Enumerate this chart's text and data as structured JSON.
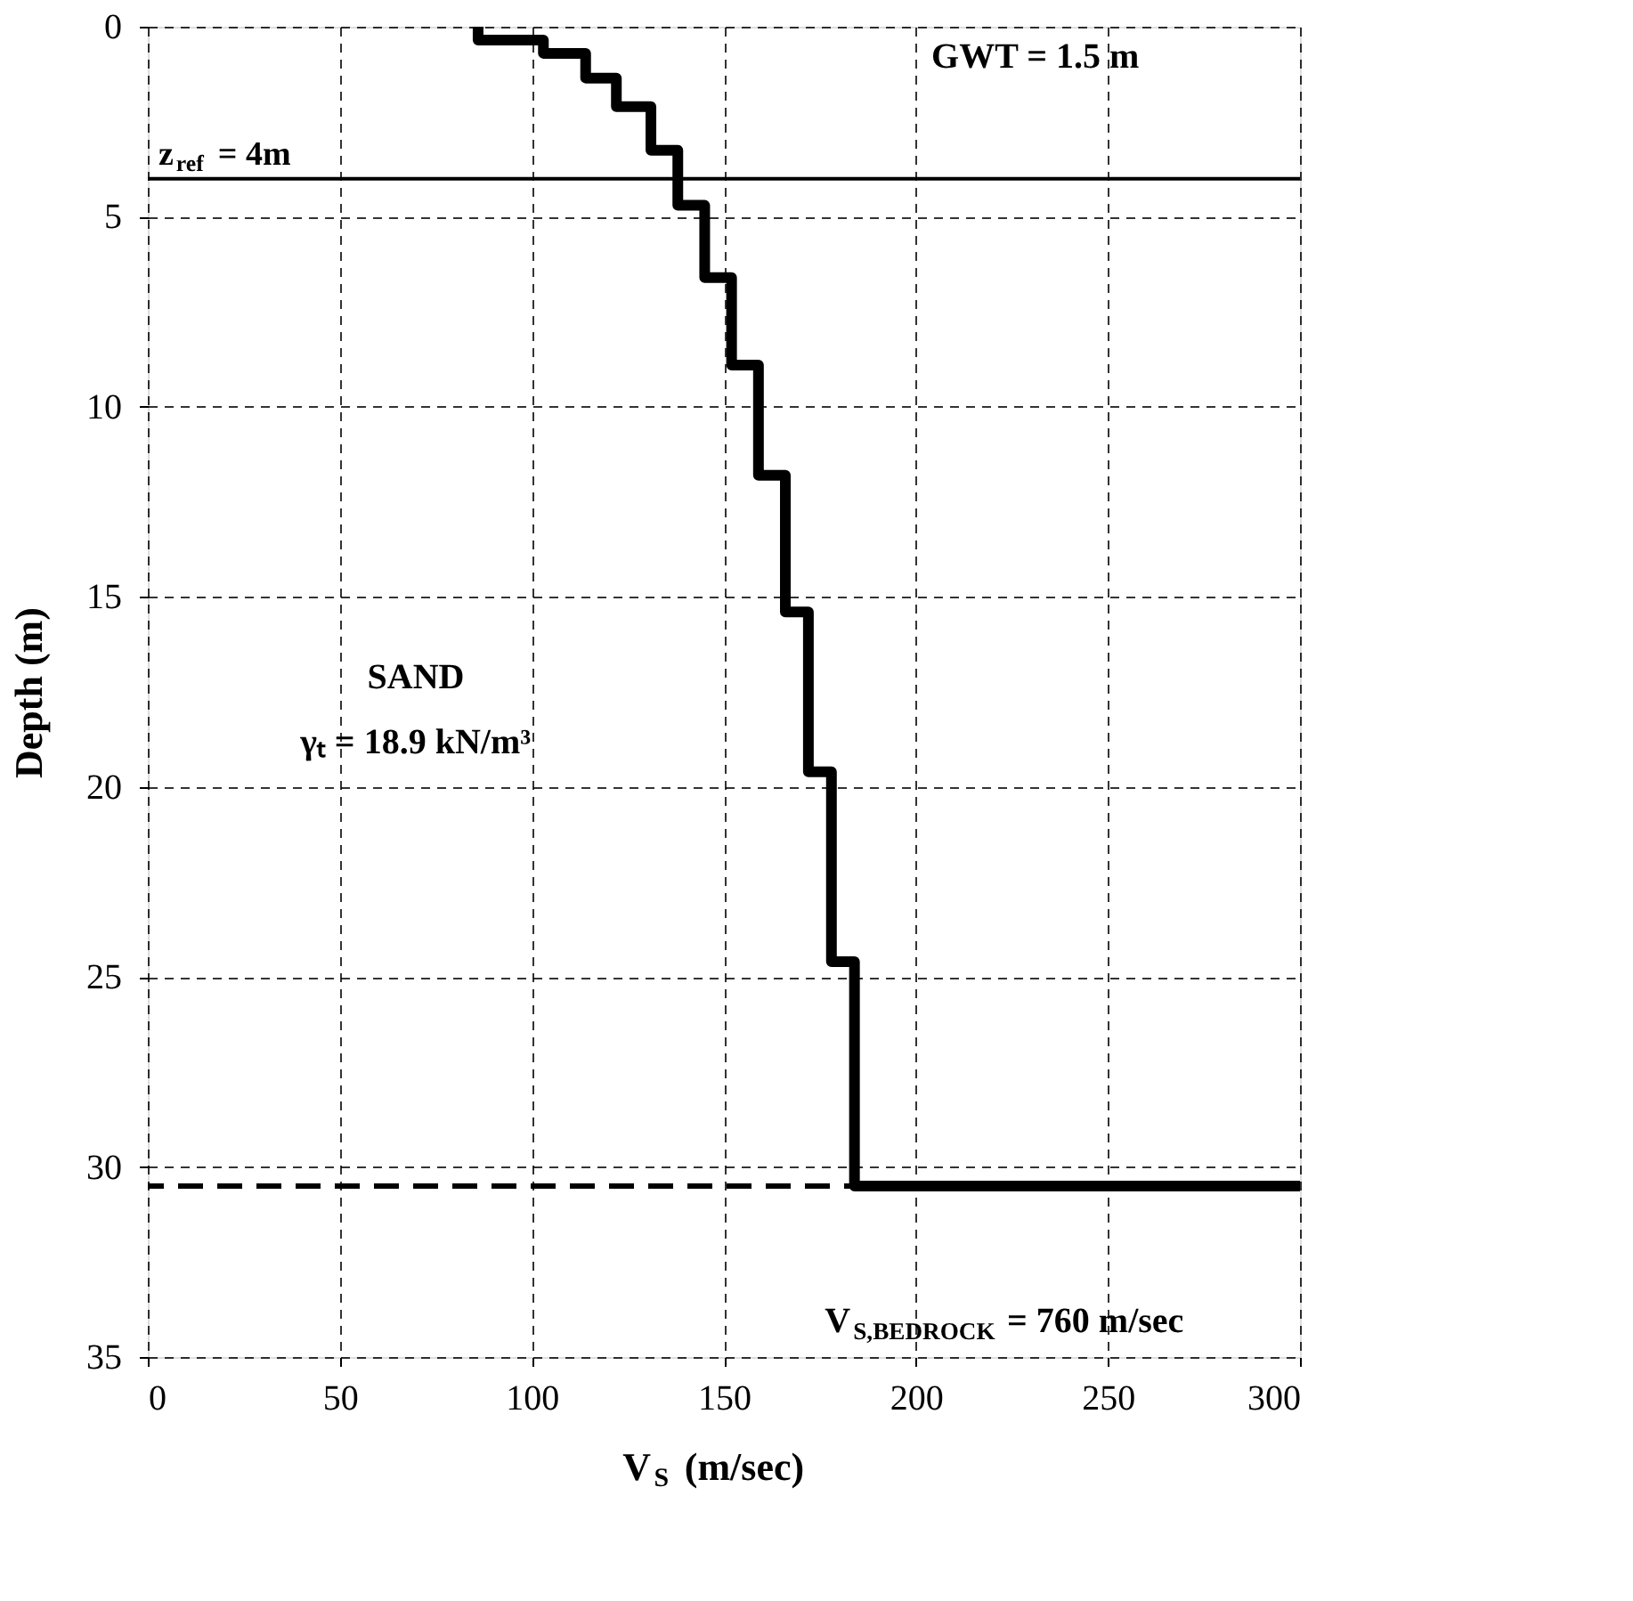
{
  "chart_data": {
    "type": "line",
    "xlabel": "V$_{S}$ (m/sec)",
    "ylabel": "Depth (m)",
    "x": [
      86,
      86,
      103,
      103,
      114,
      114,
      122,
      122,
      131,
      131,
      138,
      138,
      145,
      145,
      152,
      152,
      159,
      159,
      166,
      166,
      172,
      172,
      178,
      178,
      184,
      184,
      300
    ],
    "series": [
      {
        "color": "#000000",
        "values": [
          0,
          0.35,
          0.35,
          0.7,
          0.7,
          1.35,
          1.35,
          2.1,
          2.1,
          3.25,
          3.25,
          4.7,
          4.7,
          6.6,
          6.6,
          8.9,
          8.9,
          11.8,
          11.8,
          15.4,
          15.4,
          19.6,
          19.6,
          24.6,
          24.6,
          30.5,
          30.5
        ]
      }
    ],
    "xlim": [
      0,
      300
    ],
    "xticks": [
      0,
      50,
      100,
      150,
      200,
      250,
      300
    ],
    "ylim": [
      35,
      0
    ],
    "yticks": [
      0,
      5,
      10,
      15,
      20,
      25,
      30,
      35
    ],
    "grid": true,
    "marker": "none",
    "line_style": "solid",
    "ref_lines": [
      {
        "axis": "y",
        "value": 4,
        "label": "z$_{ref}$ = 4m",
        "color": "#000000",
        "line_style": "solid"
      },
      {
        "axis": "y",
        "value": 30.5,
        "color": "#000000",
        "line_style": "dashed"
      }
    ],
    "annotations": [
      "GWT = 1.5 m",
      "SAND",
      "γₜ = 18.9 kN/m³",
      "V$_{S,BEDROCK}$ = 760 m/sec"
    ]
  }
}
